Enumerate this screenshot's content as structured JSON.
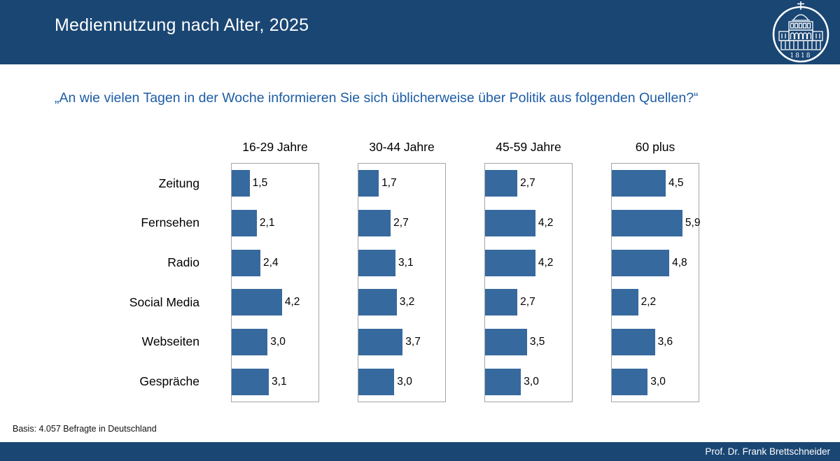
{
  "header": {
    "title": "Mediennutzung nach Alter, 2025",
    "logo": {
      "name": "universitaet-emblem",
      "year": "1818"
    }
  },
  "question": "„An wie vielen Tagen in der Woche informieren Sie sich üblicherweise über Politik aus folgenden Quellen?“",
  "chart_data": {
    "type": "bar",
    "orientation": "horizontal",
    "title": "Mediennutzung nach Alter, 2025",
    "categories": [
      "Zeitung",
      "Fernsehen",
      "Radio",
      "Social Media",
      "Webseiten",
      "Gespräche"
    ],
    "series": [
      {
        "name": "16-29 Jahre",
        "values": [
          1.5,
          2.1,
          2.4,
          4.2,
          3.0,
          3.1
        ],
        "labels": [
          "1,5",
          "2,1",
          "2,4",
          "4,2",
          "3,0",
          "3,1"
        ]
      },
      {
        "name": "30-44 Jahre",
        "values": [
          1.7,
          2.7,
          3.1,
          3.2,
          3.7,
          3.0
        ],
        "labels": [
          "1,7",
          "2,7",
          "3,1",
          "3,2",
          "3,7",
          "3,0"
        ]
      },
      {
        "name": "45-59 Jahre",
        "values": [
          2.7,
          4.2,
          4.2,
          2.7,
          3.5,
          3.0
        ],
        "labels": [
          "2,7",
          "4,2",
          "4,2",
          "2,7",
          "3,5",
          "3,0"
        ]
      },
      {
        "name": "60 plus",
        "values": [
          4.5,
          5.9,
          4.8,
          2.2,
          3.6,
          3.0
        ],
        "labels": [
          "4,5",
          "5,9",
          "4,8",
          "2,2",
          "3,6",
          "3,0"
        ]
      }
    ],
    "value_format": "comma-decimal",
    "xlim": [
      0,
      7.25
    ],
    "grid": false,
    "legend_position": "column-headers",
    "bar_color": "#36699e"
  },
  "footer": {
    "basis": "Basis: 4.057 Befragte in Deutschland",
    "credit": "Prof. Dr. Frank Brettschneider"
  },
  "colors": {
    "brand_navy": "#1a4673",
    "bar_blue": "#36699e",
    "question_blue": "#1c5ca6",
    "panel_border": "#a6a6a6"
  }
}
